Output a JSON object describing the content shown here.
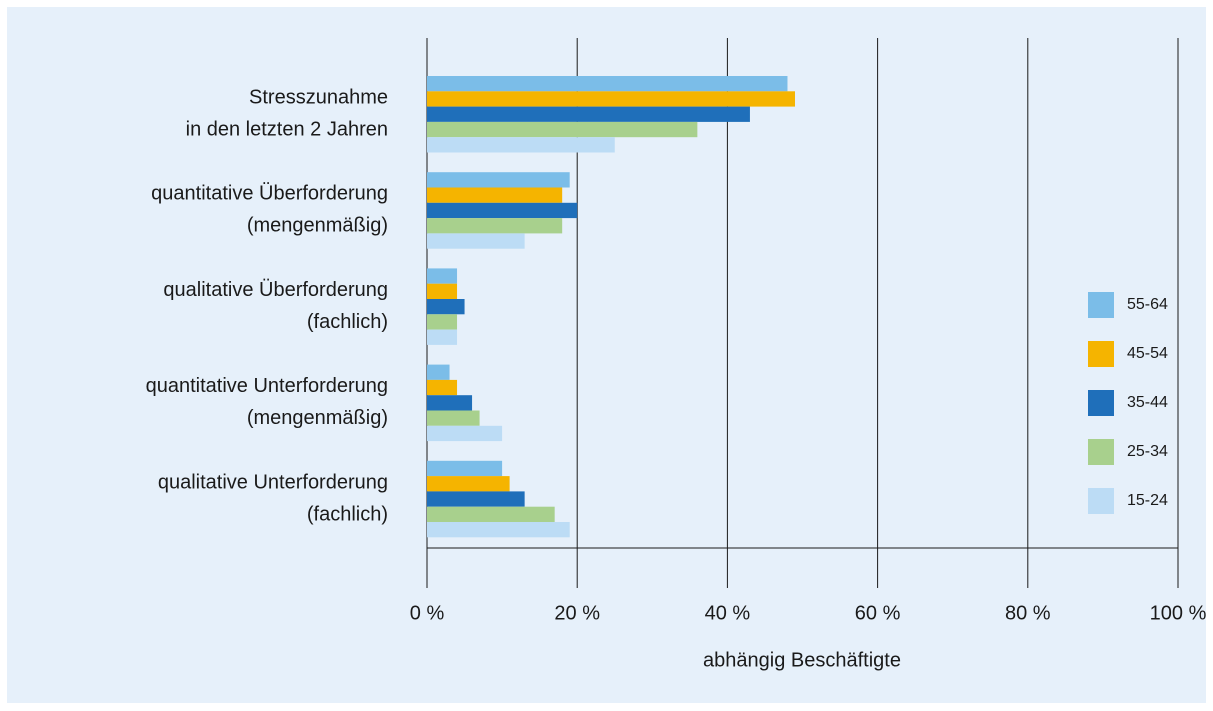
{
  "chart_data": {
    "type": "hbar",
    "categories": [
      [
        "Stresszunahme",
        "in den letzten 2 Jahren"
      ],
      [
        "quantitative Überforderung",
        "(mengenmäßig)"
      ],
      [
        "qualitative Überforderung",
        "(fachlich)"
      ],
      [
        "quantitative Unterforderung",
        "(mengenmäßig)"
      ],
      [
        "qualitative Unterforderung",
        "(fachlich)"
      ]
    ],
    "series": [
      {
        "name": "55-64",
        "color": "#7bbde8",
        "values": [
          48,
          19,
          4,
          3,
          10
        ]
      },
      {
        "name": "45-54",
        "color": "#f5b400",
        "values": [
          49,
          18,
          4,
          4,
          11
        ]
      },
      {
        "name": "35-44",
        "color": "#1f6fba",
        "values": [
          43,
          20,
          5,
          6,
          13
        ]
      },
      {
        "name": "25-34",
        "color": "#a8d08d",
        "values": [
          36,
          18,
          4,
          7,
          17
        ]
      },
      {
        "name": "15-24",
        "color": "#bcdcf5",
        "values": [
          25,
          13,
          4,
          10,
          19
        ]
      }
    ],
    "xlim": [
      0,
      100
    ],
    "xticks": [
      {
        "value": 0,
        "label": "0 %"
      },
      {
        "value": 20,
        "label": "20 %"
      },
      {
        "value": 40,
        "label": "40 %"
      },
      {
        "value": 60,
        "label": "60 %"
      },
      {
        "value": 80,
        "label": "80 %"
      },
      {
        "value": 100,
        "label": "100 %"
      }
    ],
    "xlabel": "abhängig Beschäftigte",
    "grid": true,
    "legend": "right"
  }
}
